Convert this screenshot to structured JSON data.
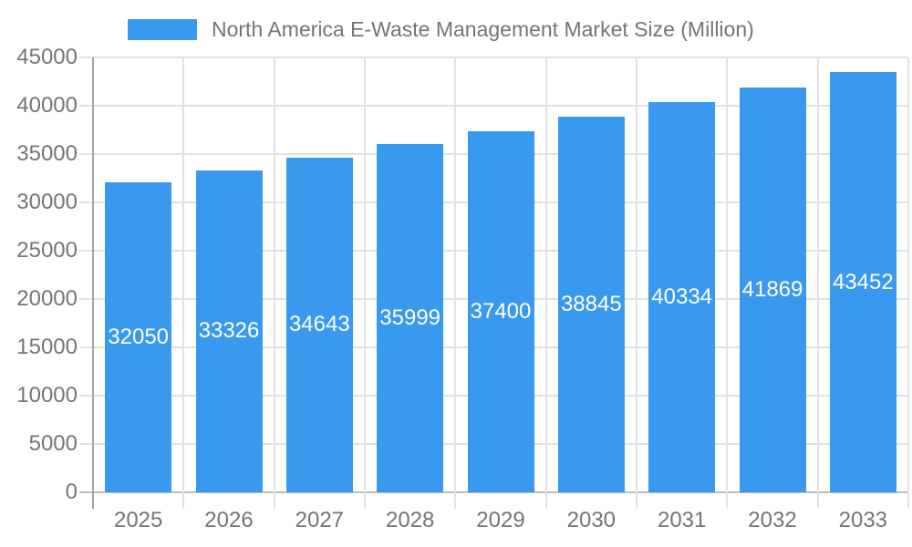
{
  "chart_data": {
    "type": "bar",
    "title": "North America E-Waste Management Market Size (Million)",
    "legend": "North America E-Waste Management Market Size (Million)",
    "legend_position": "top",
    "categories": [
      "2025",
      "2026",
      "2027",
      "2028",
      "2029",
      "2030",
      "2031",
      "2032",
      "2033"
    ],
    "values": [
      32050,
      33326,
      34643,
      35999,
      37400,
      38845,
      40334,
      41869,
      43452
    ],
    "xlabel": "",
    "ylabel": "",
    "ylim": [
      0,
      45000
    ],
    "yticks": [
      0,
      5000,
      10000,
      15000,
      20000,
      25000,
      30000,
      35000,
      40000,
      45000
    ],
    "grid": true,
    "colors": {
      "bar": "#3999EE",
      "text": "#757575",
      "bar_label": "#ffffff",
      "grid": "#e2e2e2",
      "baseline": "#bdbdbd",
      "axis": "#a3a3a3"
    }
  }
}
